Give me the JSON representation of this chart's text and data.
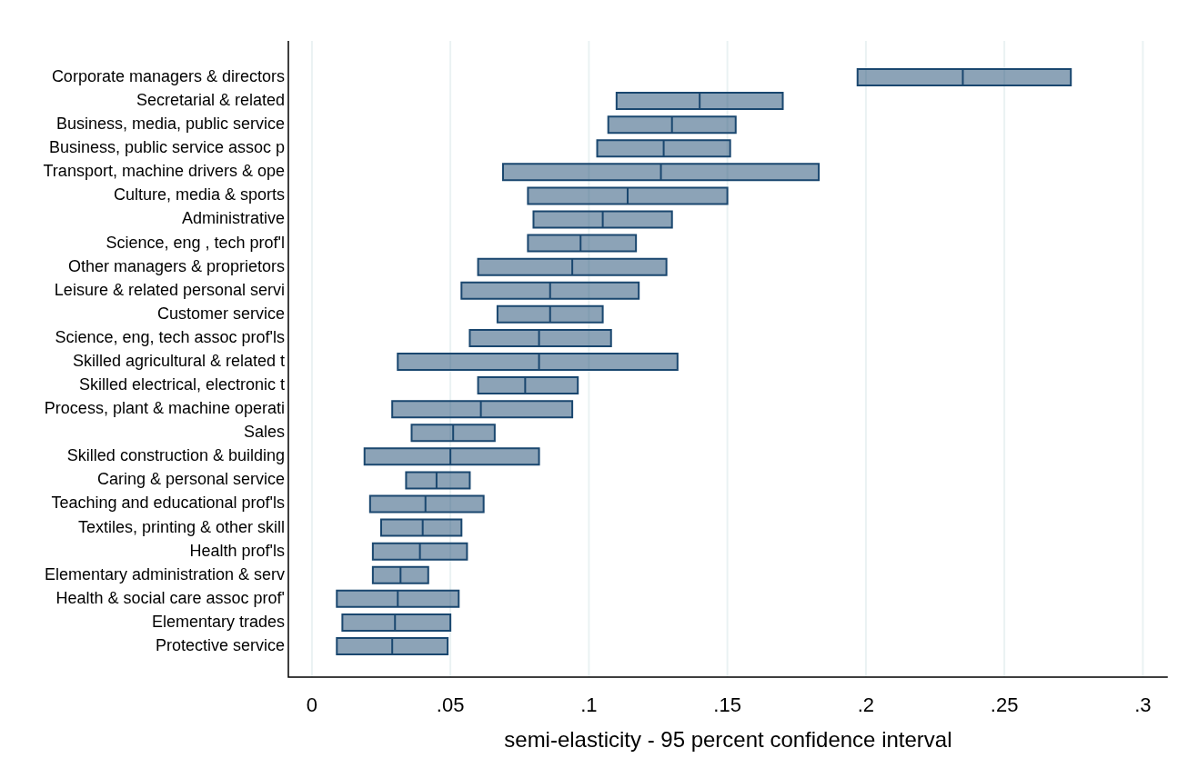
{
  "chart_data": {
    "type": "box",
    "orientation": "horizontal",
    "xlabel": "semi-elasticity - 95 percent confidence interval",
    "color": "#1a476f",
    "grid": "x",
    "xlim": [
      -0.0085,
      0.309
    ],
    "xticks": [
      0,
      {
        "value": 0.05,
        "label": ".05"
      },
      {
        "value": 0.1,
        "label": ".1"
      },
      {
        "value": 0.15,
        "label": ".15"
      },
      {
        "value": 0.2,
        "label": ".2"
      },
      {
        "value": 0.25,
        "label": ".25"
      },
      {
        "value": 0.3,
        "label": ".3"
      }
    ],
    "categories": [
      "Corporate managers & directors",
      "Secretarial & related",
      "Business, media, public service",
      "Business, public service assoc p",
      "Transport, machine drivers & ope",
      "Culture, media & sports",
      "Administrative",
      "Science, eng , tech prof'l",
      "Other managers & proprietors",
      "Leisure & related personal servi",
      "Customer service",
      "Science, eng, tech assoc prof'ls",
      "Skilled agricultural & related t",
      "Skilled electrical, electronic t",
      "Process, plant & machine operati",
      "Sales",
      "Skilled construction & building",
      "Caring & personal service",
      "Teaching and educational prof'ls",
      "Textiles, printing & other skill",
      "Health prof'ls",
      "Elementary administration & serv",
      "Health & social care assoc prof'",
      "Elementary trades",
      "Protective service"
    ],
    "boxes": [
      {
        "low": 0.197,
        "q1": 0.197,
        "median": 0.235,
        "q3": 0.274,
        "high": 0.274
      },
      {
        "low": 0.11,
        "q1": 0.11,
        "median": 0.14,
        "q3": 0.17,
        "high": 0.17
      },
      {
        "low": 0.107,
        "q1": 0.107,
        "median": 0.13,
        "q3": 0.153,
        "high": 0.153
      },
      {
        "low": 0.103,
        "q1": 0.103,
        "median": 0.127,
        "q3": 0.151,
        "high": 0.151
      },
      {
        "low": 0.069,
        "q1": 0.069,
        "median": 0.126,
        "q3": 0.183,
        "high": 0.183
      },
      {
        "low": 0.078,
        "q1": 0.078,
        "median": 0.114,
        "q3": 0.15,
        "high": 0.15
      },
      {
        "low": 0.08,
        "q1": 0.08,
        "median": 0.105,
        "q3": 0.13,
        "high": 0.13
      },
      {
        "low": 0.078,
        "q1": 0.078,
        "median": 0.097,
        "q3": 0.117,
        "high": 0.117
      },
      {
        "low": 0.06,
        "q1": 0.06,
        "median": 0.094,
        "q3": 0.128,
        "high": 0.128
      },
      {
        "low": 0.054,
        "q1": 0.054,
        "median": 0.086,
        "q3": 0.118,
        "high": 0.118
      },
      {
        "low": 0.067,
        "q1": 0.067,
        "median": 0.086,
        "q3": 0.105,
        "high": 0.105
      },
      {
        "low": 0.057,
        "q1": 0.057,
        "median": 0.082,
        "q3": 0.108,
        "high": 0.108
      },
      {
        "low": 0.031,
        "q1": 0.031,
        "median": 0.082,
        "q3": 0.132,
        "high": 0.132
      },
      {
        "low": 0.06,
        "q1": 0.06,
        "median": 0.077,
        "q3": 0.096,
        "high": 0.096
      },
      {
        "low": 0.029,
        "q1": 0.029,
        "median": 0.061,
        "q3": 0.094,
        "high": 0.094
      },
      {
        "low": 0.036,
        "q1": 0.036,
        "median": 0.051,
        "q3": 0.066,
        "high": 0.066
      },
      {
        "low": 0.019,
        "q1": 0.019,
        "median": 0.05,
        "q3": 0.082,
        "high": 0.082
      },
      {
        "low": 0.034,
        "q1": 0.034,
        "median": 0.045,
        "q3": 0.057,
        "high": 0.057
      },
      {
        "low": 0.021,
        "q1": 0.021,
        "median": 0.041,
        "q3": 0.062,
        "high": 0.062
      },
      {
        "low": 0.025,
        "q1": 0.025,
        "median": 0.04,
        "q3": 0.054,
        "high": 0.054
      },
      {
        "low": 0.022,
        "q1": 0.022,
        "median": 0.039,
        "q3": 0.056,
        "high": 0.056
      },
      {
        "low": 0.022,
        "q1": 0.022,
        "median": 0.032,
        "q3": 0.042,
        "high": 0.042
      },
      {
        "low": 0.009,
        "q1": 0.009,
        "median": 0.031,
        "q3": 0.053,
        "high": 0.053
      },
      {
        "low": 0.011,
        "q1": 0.011,
        "median": 0.03,
        "q3": 0.05,
        "high": 0.05
      },
      {
        "low": 0.009,
        "q1": 0.009,
        "median": 0.029,
        "q3": 0.049,
        "high": 0.049
      }
    ]
  }
}
